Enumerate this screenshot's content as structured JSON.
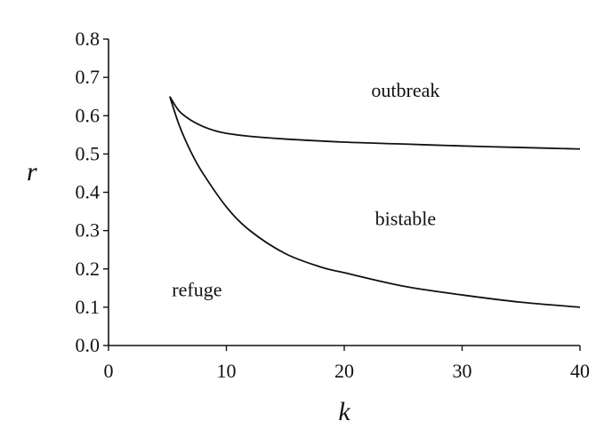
{
  "chart_data": {
    "type": "line",
    "xlabel": "k",
    "ylabel": "r",
    "xlim": [
      0,
      40
    ],
    "ylim": [
      0,
      0.8
    ],
    "x_ticks": [
      0,
      10,
      20,
      30,
      40
    ],
    "y_ticks": [
      0.0,
      0.1,
      0.2,
      0.3,
      0.4,
      0.5,
      0.6,
      0.7,
      0.8
    ],
    "x_tick_labels": [
      "0",
      "10",
      "20",
      "30",
      "40"
    ],
    "y_tick_labels": [
      "0.0",
      "0.1",
      "0.2",
      "0.3",
      "0.4",
      "0.5",
      "0.6",
      "0.7",
      "0.8"
    ],
    "grid": false,
    "series": [
      {
        "x": [
          5.2,
          6,
          7,
          8,
          9,
          10,
          12,
          15,
          20,
          25,
          30,
          35,
          40
        ],
        "y": [
          0.65,
          0.612,
          0.588,
          0.572,
          0.561,
          0.554,
          0.546,
          0.539,
          0.531,
          0.526,
          0.521,
          0.517,
          0.513
        ]
      },
      {
        "x": [
          5.2,
          6,
          7,
          8,
          10,
          12,
          15,
          18,
          20,
          25,
          30,
          35,
          40
        ],
        "y": [
          0.65,
          0.575,
          0.505,
          0.45,
          0.362,
          0.3,
          0.24,
          0.205,
          0.19,
          0.155,
          0.132,
          0.113,
          0.1
        ]
      }
    ],
    "annotations": [
      {
        "text": "outbreak",
        "x": 25.2,
        "y": 0.665
      },
      {
        "text": "bistable",
        "x": 25.2,
        "y": 0.33
      },
      {
        "text": "refuge",
        "x": 7.5,
        "y": 0.145
      }
    ]
  }
}
